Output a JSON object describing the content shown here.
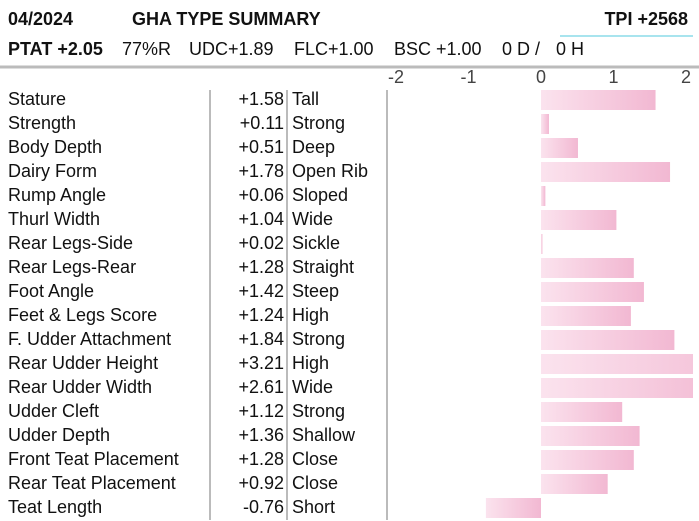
{
  "header": {
    "date": "04/2024",
    "title": "GHA TYPE SUMMARY",
    "tpi": "TPI +2568",
    "summary": [
      "PTAT +2.05",
      "77%R",
      "UDC+1.89",
      "FLC+1.00",
      "BSC +1.00",
      "0 D /",
      "0 H"
    ]
  },
  "chart_data": {
    "type": "bar",
    "orientation": "horizontal",
    "color": "#f2b8d2",
    "categories": [
      "Stature",
      "Strength",
      "Body Depth",
      "Dairy Form",
      "Rump Angle",
      "Thurl Width",
      "Rear Legs-Side",
      "Rear Legs-Rear",
      "Foot Angle",
      "Feet & Legs Score",
      "F. Udder Attachment",
      "Rear Udder Height",
      "Rear Udder Width",
      "Udder Cleft",
      "Udder Depth",
      "Front Teat Placement",
      "Rear Teat Placement",
      "Teat Length"
    ],
    "values": [
      1.58,
      0.11,
      0.51,
      1.78,
      0.06,
      1.04,
      0.02,
      1.28,
      1.42,
      1.24,
      1.84,
      3.21,
      2.61,
      1.12,
      1.36,
      1.28,
      0.92,
      -0.76
    ],
    "value_labels": [
      "+1.58",
      "+0.11",
      "+0.51",
      "+1.78",
      "+0.06",
      "+1.04",
      "+0.02",
      "+1.28",
      "+1.42",
      "+1.24",
      "+1.84",
      "+3.21",
      "+2.61",
      "+1.12",
      "+1.36",
      "+1.28",
      "+0.92",
      "-0.76"
    ],
    "descriptors": [
      "Tall",
      "Strong",
      "Deep",
      "Open Rib",
      "Sloped",
      "Wide",
      "Sickle",
      "Straight",
      "Steep",
      "High",
      "Strong",
      "High",
      "Wide",
      "Strong",
      "Shallow",
      "Close",
      "Close",
      "Short"
    ],
    "xlim": [
      -2,
      2
    ],
    "xticks": [
      -2,
      -1,
      0,
      1,
      2
    ]
  }
}
